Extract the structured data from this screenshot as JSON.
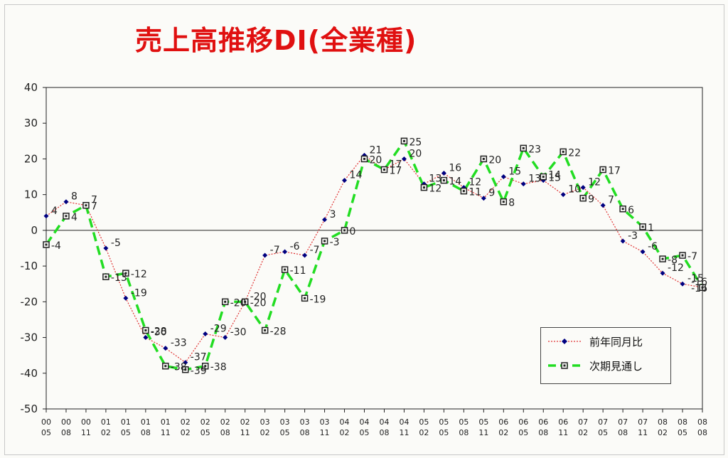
{
  "title": "売上高推移DI(全業種)",
  "chart_data": {
    "type": "line",
    "title": "売上高推移DI(全業種)",
    "ylim": [
      -50,
      40
    ],
    "yticks": [
      "40",
      "30",
      "20",
      "10",
      "0",
      "-10",
      "-20",
      "-30",
      "-40",
      "-50"
    ],
    "x_top": [
      "00",
      "00",
      "00",
      "01",
      "01",
      "01",
      "01",
      "02",
      "02",
      "02",
      "02",
      "03",
      "03",
      "03",
      "03",
      "04",
      "04",
      "04",
      "04",
      "05",
      "05",
      "05",
      "05",
      "06",
      "06",
      "06",
      "06",
      "07",
      "07",
      "07",
      "07",
      "08",
      "08",
      "08"
    ],
    "x_bottom": [
      "05",
      "08",
      "11",
      "02",
      "05",
      "08",
      "11",
      "02",
      "05",
      "08",
      "11",
      "02",
      "05",
      "08",
      "11",
      "02",
      "05",
      "08",
      "11",
      "02",
      "05",
      "08",
      "11",
      "02",
      "05",
      "08",
      "11",
      "02",
      "05",
      "08",
      "11",
      "02",
      "05",
      "08"
    ],
    "series": [
      {
        "name": "前年同月比",
        "color": "#e03030",
        "marker_color": "#000080",
        "values": [
          4,
          8,
          7,
          -5,
          -19,
          -30,
          -33,
          -37,
          -29,
          -30,
          -20,
          -7,
          -6,
          -7,
          3,
          14,
          21,
          17,
          20,
          13,
          16,
          12,
          9,
          15,
          13,
          14,
          10,
          12,
          7,
          -3,
          -6,
          -12,
          -15,
          -16
        ]
      },
      {
        "name": "次期見通し",
        "color": "#22dd22",
        "marker_color": "#222222",
        "values": [
          -4,
          4,
          7,
          -13,
          -12,
          -28,
          -38,
          -39,
          -38,
          -20,
          -20,
          -28,
          -11,
          -19,
          -3,
          0,
          20,
          17,
          25,
          12,
          14,
          11,
          20,
          8,
          23,
          15,
          22,
          9,
          17,
          6,
          1,
          -8,
          -7,
          -16
        ]
      }
    ],
    "labels_series1": [
      "4",
      "8",
      "7",
      "-5",
      "-19",
      "-30",
      "-33",
      "-37",
      "-29",
      "-30",
      "-20",
      "-7",
      "-6",
      "-7",
      "3",
      "14",
      "21",
      "17",
      "20",
      "13",
      "16",
      "12",
      "9",
      "15",
      "13",
      "14",
      "10",
      "12",
      "7",
      "-3",
      "-6",
      "-12",
      "-15",
      "-16"
    ],
    "labels_series2": [
      "-4",
      "4",
      "7",
      "-13",
      "-12",
      "-28",
      "-38",
      "-39",
      "-38",
      "-20",
      "-20",
      "-28",
      "-11",
      "-19",
      "-3",
      "0",
      "20",
      "17",
      "25",
      "12",
      "14",
      "11",
      "20",
      "8",
      "23",
      "15",
      "22",
      "9",
      "17",
      "6",
      "1",
      "-8",
      "-7",
      "-16"
    ],
    "grid": false,
    "legend": "bottom-right"
  }
}
